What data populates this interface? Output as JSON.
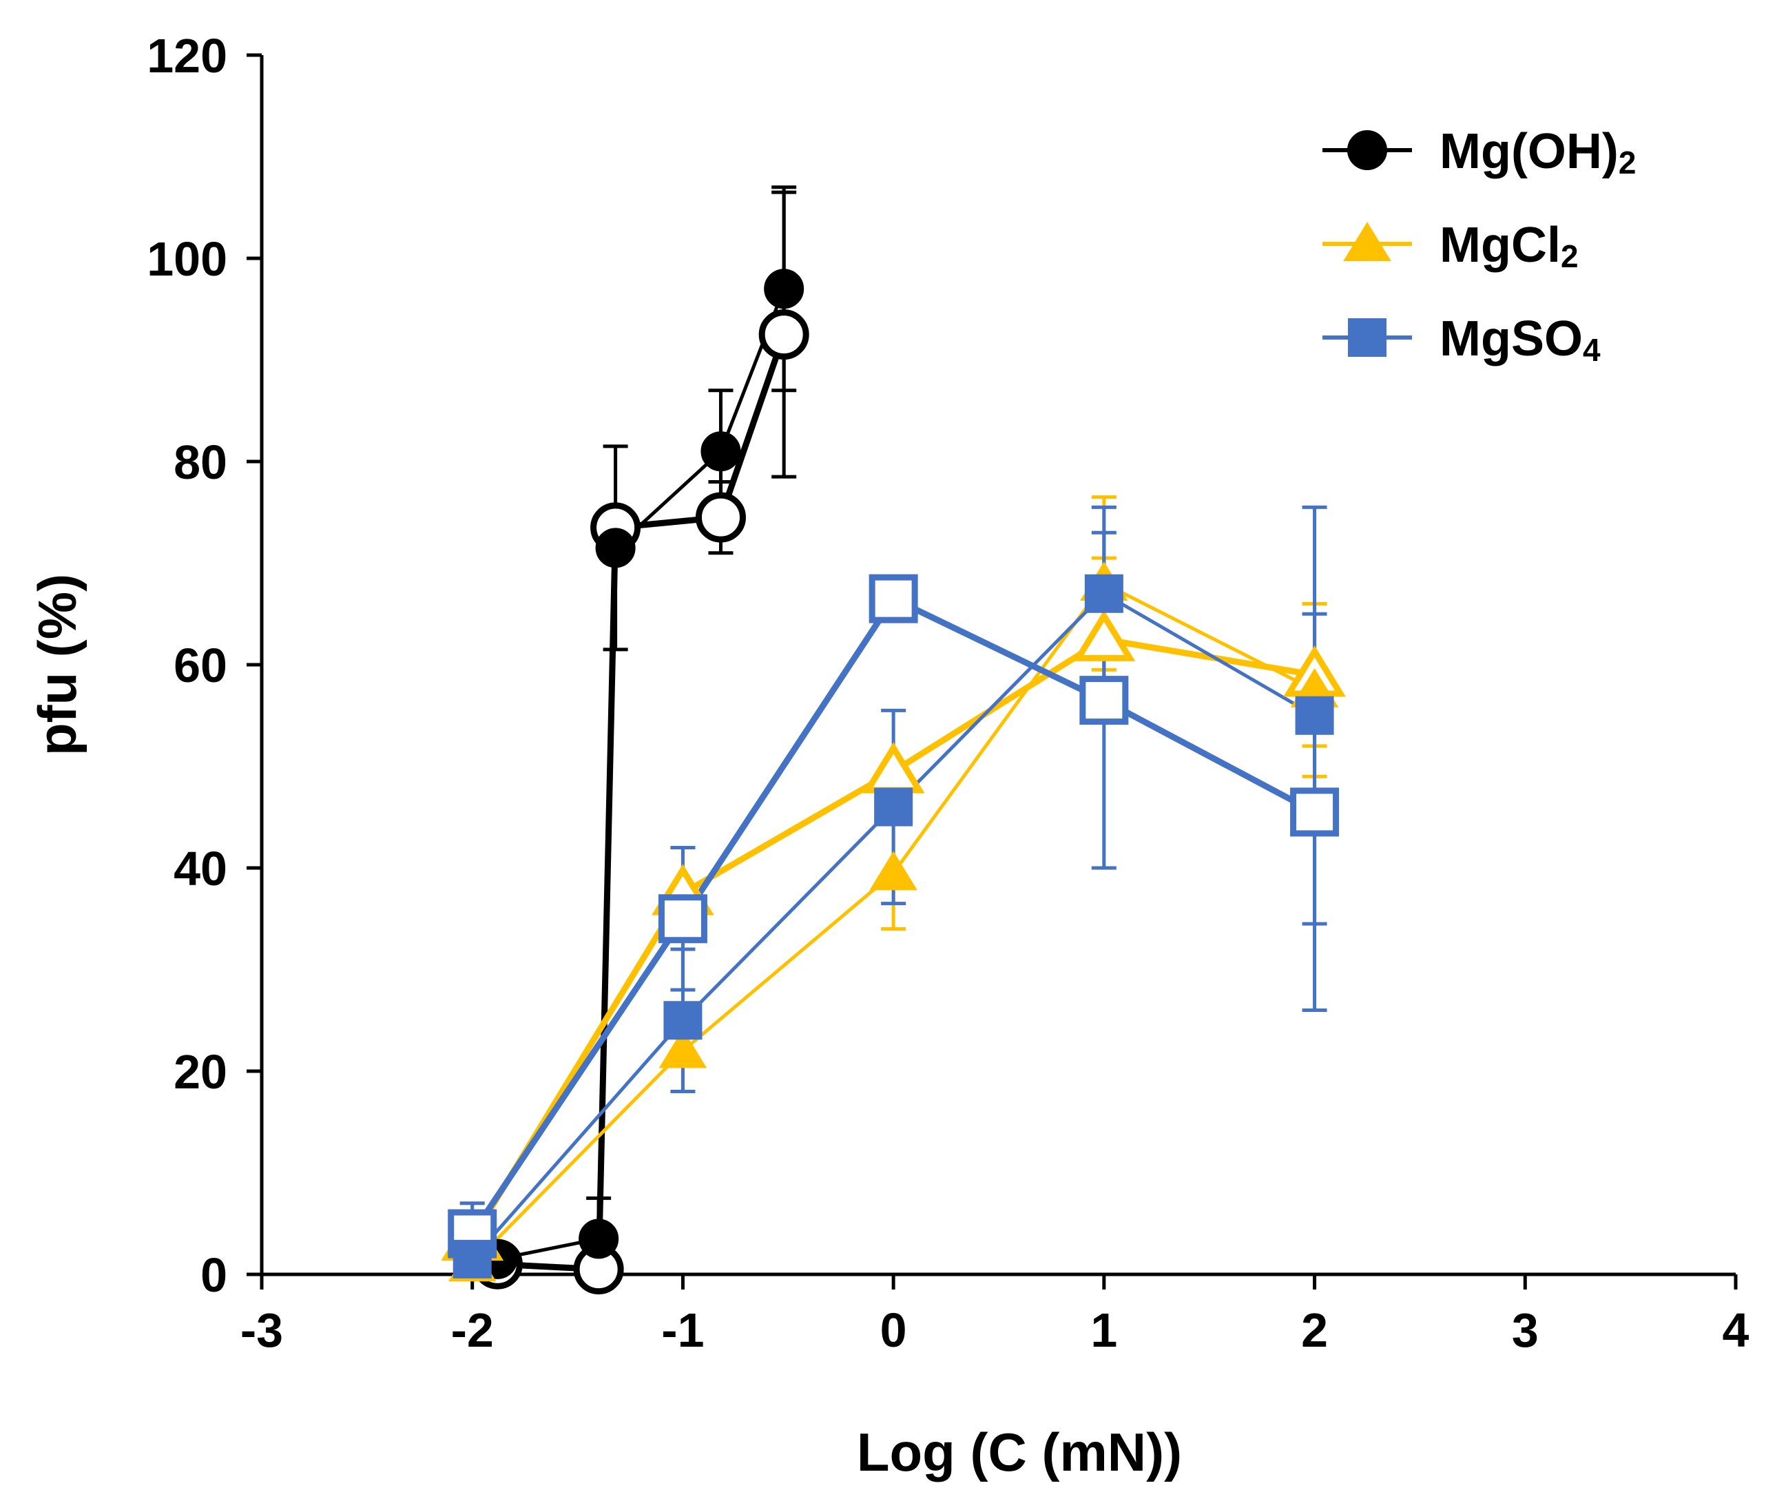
{
  "chart_data": {
    "type": "line",
    "xlabel": "Log (C (mN))",
    "ylabel": "pfu (%)",
    "xlim": [
      -3,
      4
    ],
    "ylim": [
      0,
      120
    ],
    "xticks": [
      "-3",
      "-2",
      "-1",
      "0",
      "1",
      "2",
      "3",
      "4"
    ],
    "yticks": [
      "0",
      "20",
      "40",
      "60",
      "80",
      "100",
      "120"
    ],
    "grid": false,
    "legend_position": "top-right",
    "legend": [
      {
        "main": "Mg(OH)",
        "sub": "2",
        "color": "#000000",
        "marker": "circle"
      },
      {
        "main": "MgCl",
        "sub": "2",
        "color": "#FFC000",
        "marker": "triangle"
      },
      {
        "main": "MgSO",
        "sub": "4",
        "color": "#4472C4",
        "marker": "square"
      }
    ],
    "series": [
      {
        "group": "Mg(OH)2",
        "filled": false,
        "color": "#000000",
        "marker": "circle",
        "x": [
          -1.88,
          -1.4,
          -1.32,
          -0.82,
          -0.52
        ],
        "y": [
          1.0,
          0.5,
          73.5,
          74.5,
          92.5
        ],
        "err": [
          0,
          0,
          0,
          3.5,
          14
        ]
      },
      {
        "group": "Mg(OH)2",
        "filled": true,
        "color": "#000000",
        "marker": "circle",
        "x": [
          -1.88,
          -1.4,
          -1.32,
          -0.82,
          -0.52
        ],
        "y": [
          1.5,
          3.5,
          71.5,
          81.0,
          97.0
        ],
        "err": [
          0,
          4.0,
          10.0,
          6.0,
          10.0
        ]
      },
      {
        "group": "MgCl2",
        "filled": false,
        "color": "#FFC000",
        "marker": "triangle",
        "x": [
          -2,
          -1,
          0,
          1,
          2
        ],
        "y": [
          3.5,
          37.5,
          49.5,
          62.5,
          59.0
        ],
        "err": [
          3.5,
          4.5,
          0,
          8.0,
          7.0
        ]
      },
      {
        "group": "MgCl2",
        "filled": true,
        "color": "#FFC000",
        "marker": "triangle",
        "x": [
          -2,
          -1,
          0,
          1,
          2
        ],
        "y": [
          1.0,
          22.0,
          39.5,
          68.0,
          57.5
        ],
        "err": [
          1.5,
          4.0,
          5.5,
          8.5,
          8.5
        ]
      },
      {
        "group": "MgSO4",
        "filled": false,
        "color": "#4472C4",
        "marker": "square",
        "x": [
          -2,
          -1,
          0,
          1,
          2
        ],
        "y": [
          4.0,
          35.0,
          66.5,
          56.5,
          45.5
        ],
        "err": [
          3.0,
          7.0,
          0,
          16.5,
          19.5
        ]
      },
      {
        "group": "MgSO4",
        "filled": true,
        "color": "#4472C4",
        "marker": "square",
        "x": [
          -2,
          -1,
          0,
          1,
          2
        ],
        "y": [
          1.5,
          25.0,
          46.0,
          67.0,
          55.0
        ],
        "err": [
          2.0,
          7.0,
          9.5,
          8.5,
          20.5
        ]
      }
    ]
  }
}
